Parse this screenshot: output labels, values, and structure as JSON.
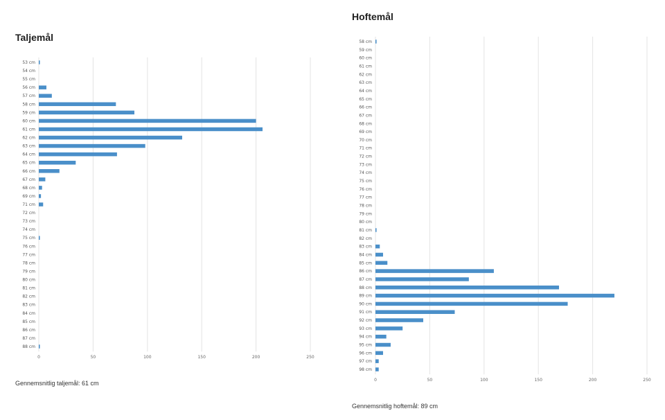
{
  "chart_data": [
    {
      "type": "bar",
      "orientation": "horizontal",
      "title": "Taljemål",
      "footer": "Gennemsnitlig taljemål: 61 cm",
      "categories": [
        "53 cm",
        "54 cm",
        "55 cm",
        "56 cm",
        "57 cm",
        "58 cm",
        "59 cm",
        "60 cm",
        "61 cm",
        "62 cm",
        "63 cm",
        "64 cm",
        "65 cm",
        "66 cm",
        "67 cm",
        "68 cm",
        "69 cm",
        "71 cm",
        "72 cm",
        "73 cm",
        "74 cm",
        "75 cm",
        "76 cm",
        "77 cm",
        "78 cm",
        "79 cm",
        "80 cm",
        "81 cm",
        "82 cm",
        "83 cm",
        "84 cm",
        "85 cm",
        "86 cm",
        "87 cm",
        "88 cm"
      ],
      "values": [
        1,
        0,
        0,
        7,
        12,
        71,
        88,
        200,
        206,
        132,
        98,
        72,
        34,
        19,
        6,
        3,
        2,
        4,
        0,
        0,
        0,
        1,
        0,
        0,
        0,
        0,
        0,
        0,
        0,
        0,
        0,
        0,
        0,
        0,
        1
      ],
      "xlim": [
        0,
        250
      ],
      "xticks": [
        "0",
        "50",
        "100",
        "150",
        "200",
        "250"
      ],
      "grid": true,
      "color": "#4a8fc9"
    },
    {
      "type": "bar",
      "orientation": "horizontal",
      "title": "Hoftemål",
      "footer": "Gennemsnitlig hoftemål: 89 cm",
      "categories": [
        "58 cm",
        "59 cm",
        "60 cm",
        "61 cm",
        "62 cm",
        "63 cm",
        "64 cm",
        "65 cm",
        "66 cm",
        "67 cm",
        "68 cm",
        "69 cm",
        "70 cm",
        "71 cm",
        "72 cm",
        "73 cm",
        "74 cm",
        "75 cm",
        "76 cm",
        "77 cm",
        "78 cm",
        "79 cm",
        "80 cm",
        "81 cm",
        "82 cm",
        "83 cm",
        "84 cm",
        "85 cm",
        "86 cm",
        "87 cm",
        "88 cm",
        "89 cm",
        "90 cm",
        "91 cm",
        "92 cm",
        "93 cm",
        "94 cm",
        "95 cm",
        "96 cm",
        "97 cm",
        "98 cm"
      ],
      "values": [
        1,
        0,
        0,
        0,
        0,
        0,
        0,
        0,
        0,
        0,
        0,
        0,
        0,
        0,
        0,
        0,
        0,
        0,
        0,
        0,
        0,
        0,
        0,
        1,
        0,
        4,
        7,
        11,
        109,
        86,
        169,
        220,
        177,
        73,
        44,
        25,
        10,
        14,
        7,
        3,
        3
      ],
      "xlim": [
        0,
        250
      ],
      "xticks": [
        "0",
        "50",
        "100",
        "150",
        "200",
        "250"
      ],
      "grid": true,
      "color": "#4a8fc9"
    }
  ]
}
